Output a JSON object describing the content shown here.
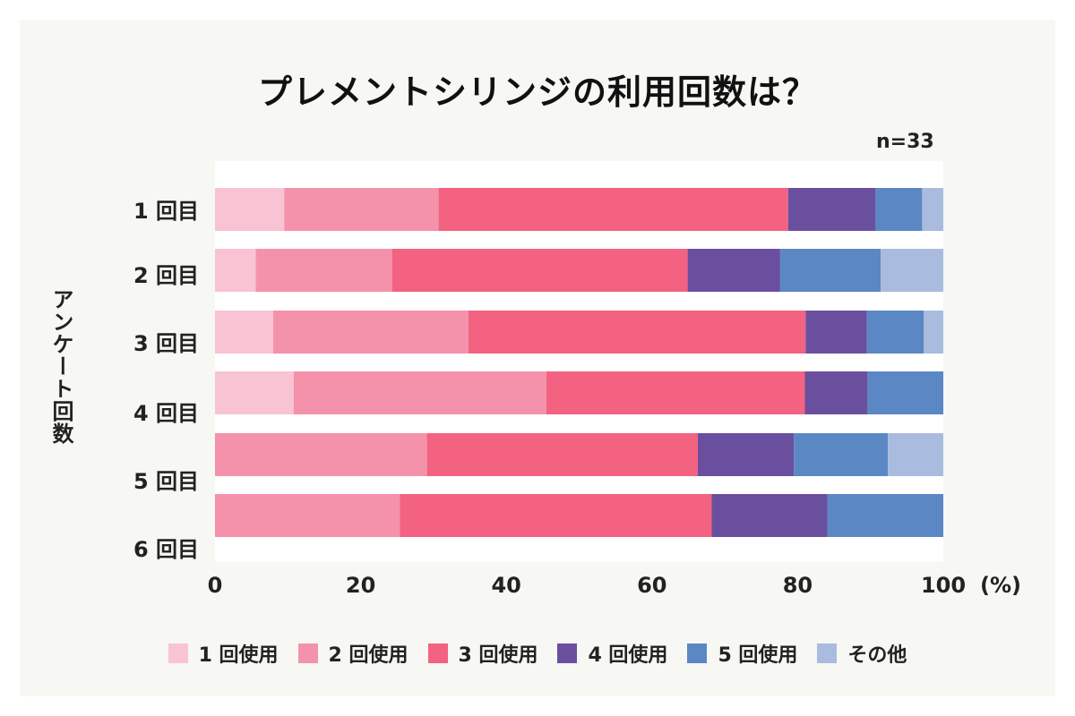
{
  "title": "プレメントシリンジの利用回数は？",
  "n_label": "n=33",
  "chart_data": {
    "type": "bar",
    "orientation": "horizontal",
    "stacked": true,
    "title": "プレメントシリンジの利用回数は？",
    "ylabel": "アンケート回数",
    "xlabel": "",
    "unit_label": "(%)",
    "xlim": [
      0,
      100
    ],
    "x_ticks": [
      "0",
      "20",
      "40",
      "60",
      "80",
      "100"
    ],
    "categories": [
      "1回目",
      "2回目",
      "3回目",
      "4回目",
      "5回目",
      "6回目"
    ],
    "series": [
      {
        "name": "1回使用",
        "color": "#f8c4d4",
        "values": [
          9.5,
          5.6,
          8.0,
          10.8,
          0.0,
          0.0
        ]
      },
      {
        "name": "2回使用",
        "color": "#f592ab",
        "values": [
          21.2,
          18.7,
          26.8,
          34.7,
          29.1,
          25.4
        ]
      },
      {
        "name": "3回使用",
        "color": "#f36280",
        "values": [
          48.0,
          40.6,
          46.3,
          35.5,
          37.2,
          42.8
        ]
      },
      {
        "name": "4回使用",
        "color": "#6a4f9e",
        "values": [
          12.0,
          12.7,
          8.4,
          8.6,
          13.2,
          15.9
        ]
      },
      {
        "name": "5回使用",
        "color": "#5b88c4",
        "values": [
          6.4,
          13.8,
          7.8,
          10.4,
          12.9,
          15.9
        ]
      },
      {
        "name": "その他",
        "color": "#a9bbdf",
        "values": [
          2.9,
          8.6,
          2.7,
          0.0,
          7.6,
          0.0
        ]
      }
    ],
    "legend_position": "bottom",
    "grid": false
  }
}
